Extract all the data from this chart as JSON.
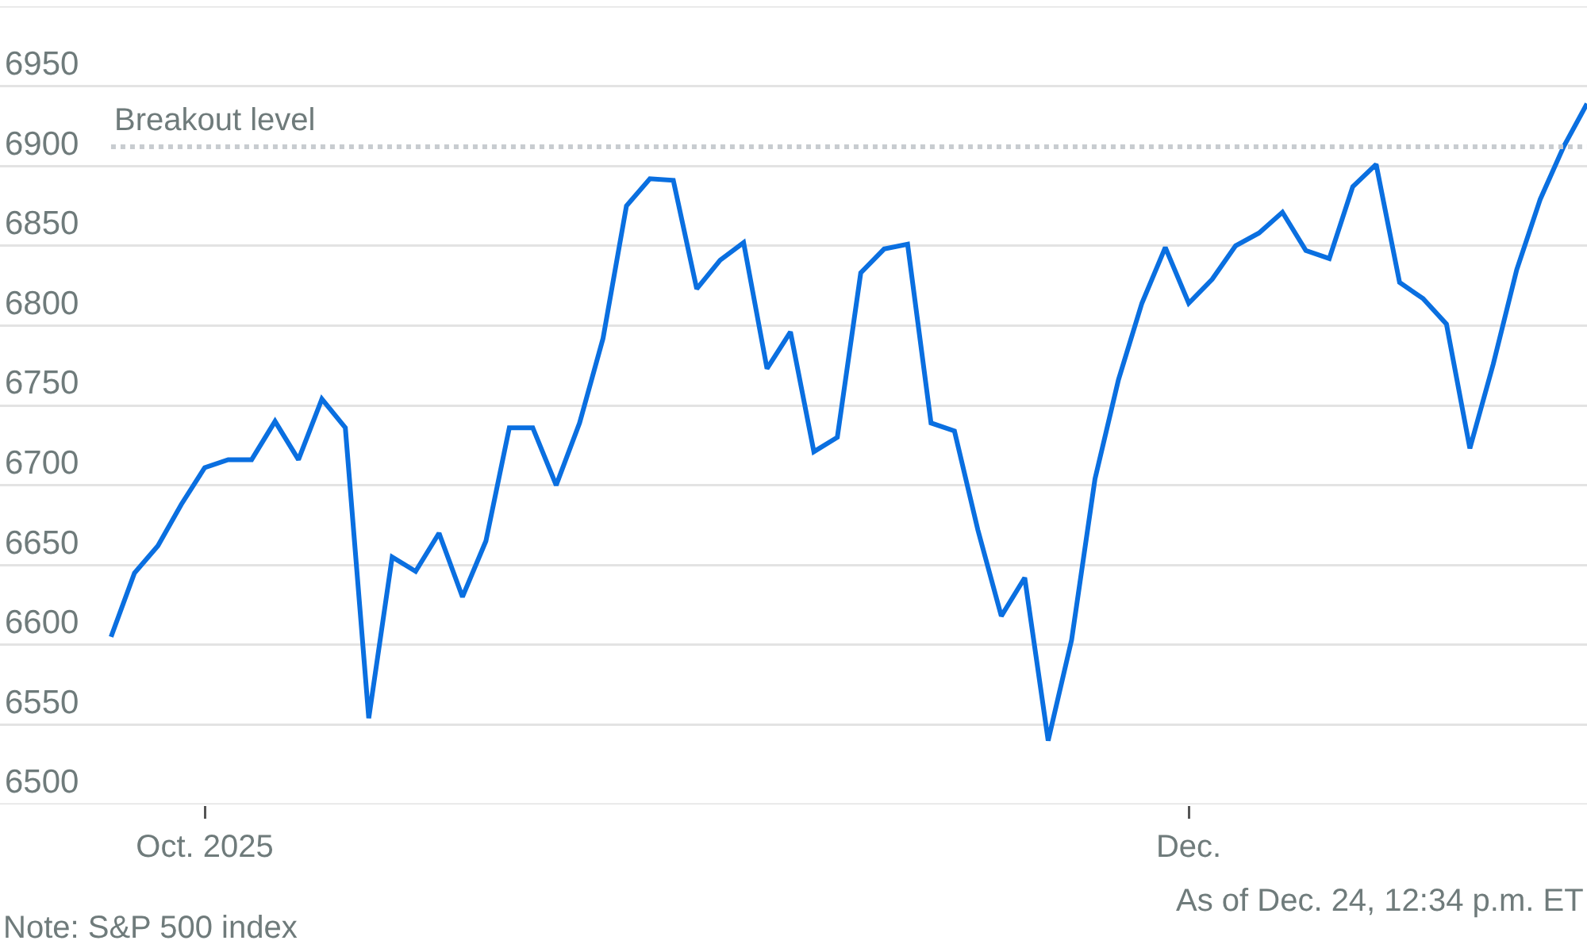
{
  "chart_data": {
    "type": "line",
    "categories": [
      null,
      null,
      null,
      null,
      "Oct. 2025",
      null,
      null,
      null,
      null,
      null,
      null,
      null,
      null,
      null,
      null,
      null,
      null,
      null,
      null,
      null,
      null,
      null,
      null,
      null,
      null,
      null,
      null,
      null,
      null,
      null,
      null,
      null,
      null,
      null,
      null,
      null,
      null,
      null,
      null,
      null,
      null,
      null,
      null,
      null,
      null,
      null,
      "Dec.",
      null,
      null,
      null,
      null,
      null,
      null,
      null,
      null,
      null,
      null,
      null,
      null,
      null,
      null,
      null,
      null,
      null
    ],
    "series": [
      {
        "color": "#0a6fe0",
        "values": [
          6605,
          6645,
          6662,
          6688,
          6711,
          6716,
          6716,
          6740,
          6716,
          6754,
          6736,
          6554,
          6655,
          6646,
          6670,
          6630,
          6665,
          6736,
          6736,
          6700,
          6739,
          6792,
          6875,
          6892,
          6891,
          6823,
          6841,
          6852,
          6773,
          6796,
          6721,
          6730,
          6833,
          6848,
          6851,
          6739,
          6734,
          6672,
          6618,
          6642,
          6540,
          6603,
          6704,
          6766,
          6814,
          6849,
          6814,
          6829,
          6850,
          6858,
          6871,
          6847,
          6842,
          6887,
          6901,
          6827,
          6817,
          6801,
          6723,
          6776,
          6835,
          6879,
          6912,
          6939
        ]
      }
    ],
    "ylim": [
      6500,
      7000
    ],
    "yticks": [
      6500,
      6550,
      6600,
      6650,
      6700,
      6750,
      6800,
      6850,
      6900,
      6950,
      {
        "value": 7000,
        "label": null
      }
    ],
    "grid": "y",
    "marker": "none",
    "line_style": "solid",
    "ref_lines": [
      {
        "axis": "y",
        "value": 6912,
        "label": "Breakout level",
        "line_style": "dotted",
        "color": "#c8ccd0"
      }
    ],
    "annotations": [
      "As of Dec. 24, 12:34 p.m. ET",
      "Note: S&P 500 index"
    ]
  }
}
